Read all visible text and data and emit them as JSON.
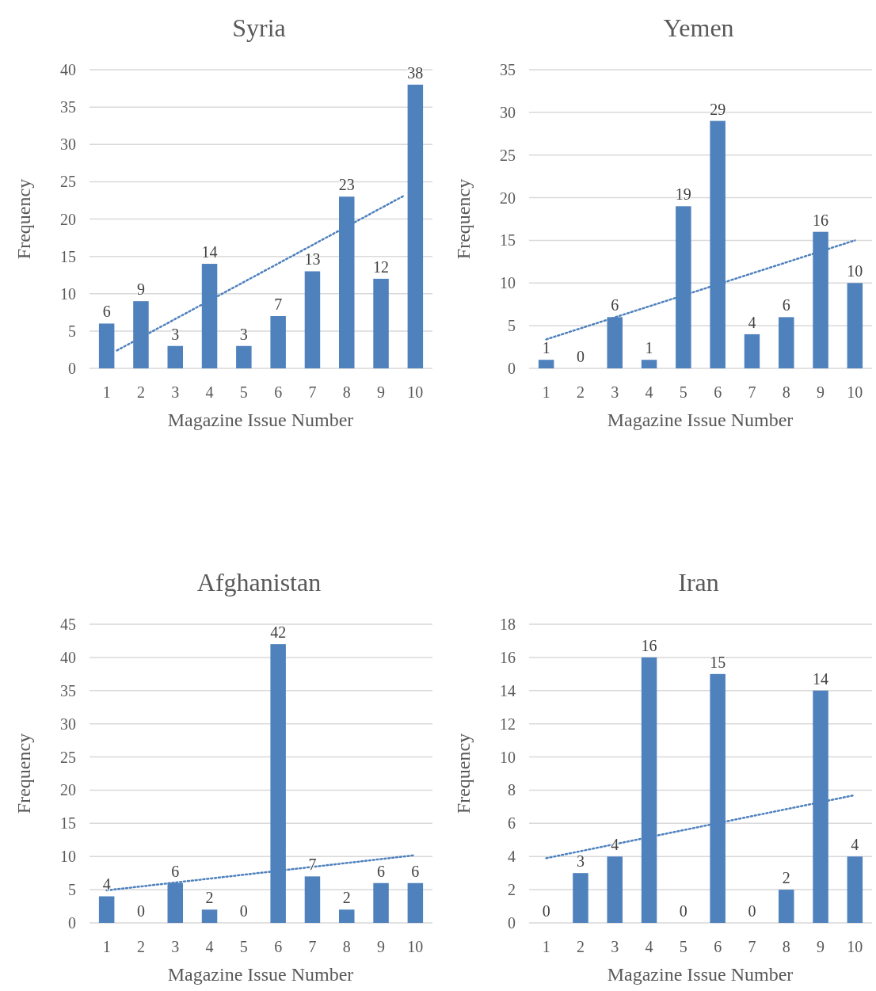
{
  "chart_data": [
    {
      "type": "bar",
      "title": "Syria",
      "xlabel": "Magazine Issue Number",
      "ylabel": "Frequency",
      "x": [
        1,
        2,
        3,
        4,
        5,
        6,
        7,
        8,
        9,
        10
      ],
      "xlim": [
        0.5,
        10.5
      ],
      "xticks": [
        1,
        2,
        3,
        4,
        5,
        6,
        7,
        8,
        9,
        10
      ],
      "ylim": [
        0,
        40
      ],
      "yticks": [
        0,
        5,
        10,
        15,
        20,
        25,
        30,
        35,
        40
      ],
      "grid": "y",
      "series": [
        {
          "color": "#4f81bd",
          "values": [
            6,
            9,
            3,
            14,
            3,
            7,
            13,
            23,
            12,
            38
          ],
          "value_labels": [
            "6",
            "9",
            "3",
            "14",
            "3",
            "7",
            "13",
            "23",
            "12",
            "38"
          ]
        },
        {
          "type": "line",
          "color": "#4f81bd",
          "x": [
            1.3,
            9.7
          ],
          "values": [
            2.4,
            23.2
          ],
          "line_style": "dotted",
          "marker": "none"
        }
      ]
    },
    {
      "type": "bar",
      "title": "Yemen",
      "xlabel": "Magazine Issue Number",
      "ylabel": "Frequency",
      "x": [
        1,
        2,
        3,
        4,
        5,
        6,
        7,
        8,
        9,
        10
      ],
      "xlim": [
        0.5,
        10.5
      ],
      "xticks": [
        1,
        2,
        3,
        4,
        5,
        6,
        7,
        8,
        9,
        10
      ],
      "ylim": [
        0,
        35
      ],
      "yticks": [
        0,
        5,
        10,
        15,
        20,
        25,
        30,
        35
      ],
      "grid": "y",
      "series": [
        {
          "color": "#4f81bd",
          "values": [
            1,
            0,
            6,
            1,
            19,
            29,
            4,
            6,
            16,
            10
          ],
          "value_labels": [
            "1",
            "0",
            "6",
            "1",
            "19",
            "29",
            "4",
            "6",
            "16",
            "10"
          ]
        },
        {
          "type": "line",
          "color": "#4f81bd",
          "x": [
            1,
            10
          ],
          "values": [
            3.4,
            15
          ],
          "line_style": "dotted",
          "marker": "none"
        }
      ]
    },
    {
      "type": "bar",
      "title": "Afghanistan",
      "xlabel": "Magazine Issue Number",
      "ylabel": "Frequency",
      "x": [
        1,
        2,
        3,
        4,
        5,
        6,
        7,
        8,
        9,
        10
      ],
      "xlim": [
        0.5,
        10.5
      ],
      "xticks": [
        1,
        2,
        3,
        4,
        5,
        6,
        7,
        8,
        9,
        10
      ],
      "ylim": [
        0,
        45
      ],
      "yticks": [
        0,
        5,
        10,
        15,
        20,
        25,
        30,
        35,
        40,
        45
      ],
      "grid": "y",
      "series": [
        {
          "color": "#4f81bd",
          "values": [
            4,
            0,
            6,
            2,
            0,
            42,
            7,
            2,
            6,
            6
          ],
          "value_labels": [
            "4",
            "0",
            "6",
            "2",
            "0",
            "42",
            "7",
            "2",
            "6",
            "6"
          ]
        },
        {
          "type": "line",
          "color": "#4f81bd",
          "x": [
            1,
            10
          ],
          "values": [
            4.9,
            10.2
          ],
          "line_style": "dotted",
          "marker": "none"
        }
      ]
    },
    {
      "type": "bar",
      "title": "Iran",
      "xlabel": "Magazine Issue Number",
      "ylabel": "Frequency",
      "x": [
        1,
        2,
        3,
        4,
        5,
        6,
        7,
        8,
        9,
        10
      ],
      "xlim": [
        0.5,
        10.5
      ],
      "xticks": [
        1,
        2,
        3,
        4,
        5,
        6,
        7,
        8,
        9,
        10
      ],
      "ylim": [
        0,
        18
      ],
      "yticks": [
        0,
        2,
        4,
        6,
        8,
        10,
        12,
        14,
        16,
        18
      ],
      "grid": "y",
      "series": [
        {
          "color": "#4f81bd",
          "values": [
            0,
            3,
            4,
            16,
            0,
            15,
            0,
            2,
            14,
            4
          ],
          "value_labels": [
            "0",
            "3",
            "4",
            "16",
            "0",
            "15",
            "0",
            "2",
            "14",
            "4"
          ]
        },
        {
          "type": "line",
          "color": "#4f81bd",
          "x": [
            1,
            10
          ],
          "values": [
            3.9,
            7.7
          ],
          "line_style": "dotted",
          "marker": "none"
        }
      ]
    }
  ]
}
